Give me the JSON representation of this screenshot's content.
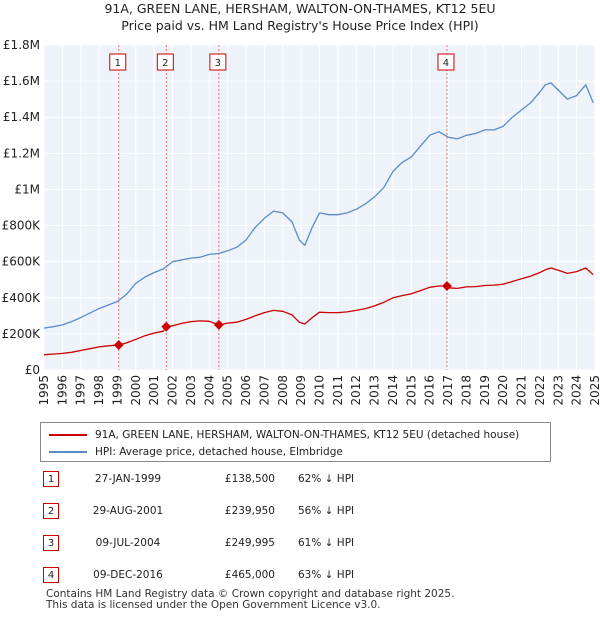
{
  "chart_data": {
    "type": "line",
    "title": "91A, GREEN LANE, HERSHAM, WALTON-ON-THAMES, KT12 5EU",
    "subtitle": "Price paid vs. HM Land Registry's House Price Index (HPI)",
    "xlabel": "",
    "ylabel": "",
    "xlim": [
      1995,
      2025
    ],
    "ylim": [
      0,
      1800000
    ],
    "x_ticks": [
      "1995",
      "1996",
      "1997",
      "1998",
      "1999",
      "2000",
      "2001",
      "2002",
      "2003",
      "2004",
      "2005",
      "2006",
      "2007",
      "2008",
      "2009",
      "2010",
      "2011",
      "2012",
      "2013",
      "2014",
      "2015",
      "2016",
      "2017",
      "2018",
      "2019",
      "2020",
      "2021",
      "2022",
      "2023",
      "2024",
      "2025"
    ],
    "y_ticks": [
      {
        "value": 0,
        "label": "£0"
      },
      {
        "value": 200000,
        "label": "£200K"
      },
      {
        "value": 400000,
        "label": "£400K"
      },
      {
        "value": 600000,
        "label": "£600K"
      },
      {
        "value": 800000,
        "label": "£800K"
      },
      {
        "value": 1000000,
        "label": "£1M"
      },
      {
        "value": 1200000,
        "label": "£1.2M"
      },
      {
        "value": 1400000,
        "label": "£1.4M"
      },
      {
        "value": 1600000,
        "label": "£1.6M"
      },
      {
        "value": 1800000,
        "label": "£1.8M"
      }
    ],
    "grid": true,
    "series": [
      {
        "name": "HPI: Average price, detached house, Elmbridge",
        "color": "#5b8cc8",
        "x": [
          1995,
          1995.5,
          1996,
          1996.5,
          1997,
          1997.5,
          1998,
          1998.5,
          1999,
          1999.5,
          2000,
          2000.5,
          2001,
          2001.5,
          2002,
          2002.5,
          2003,
          2003.5,
          2004,
          2004.5,
          2005,
          2005.5,
          2006,
          2006.5,
          2007,
          2007.5,
          2008,
          2008.5,
          2008.9,
          2009.2,
          2009.6,
          2010,
          2010.5,
          2011,
          2011.5,
          2012,
          2012.5,
          2013,
          2013.5,
          2014,
          2014.5,
          2015,
          2015.5,
          2016,
          2016.5,
          2017,
          2017.5,
          2018,
          2018.5,
          2019,
          2019.5,
          2020,
          2020.5,
          2021,
          2021.5,
          2022,
          2022.3,
          2022.6,
          2023,
          2023.5,
          2024,
          2024.5,
          2024.9
        ],
        "values": [
          232000,
          240000,
          250000,
          268000,
          290000,
          315000,
          340000,
          360000,
          380000,
          420000,
          480000,
          515000,
          540000,
          560000,
          600000,
          610000,
          620000,
          625000,
          640000,
          645000,
          660000,
          680000,
          720000,
          790000,
          840000,
          880000,
          870000,
          820000,
          720000,
          690000,
          790000,
          870000,
          860000,
          860000,
          870000,
          890000,
          920000,
          960000,
          1010000,
          1100000,
          1150000,
          1180000,
          1240000,
          1300000,
          1320000,
          1290000,
          1280000,
          1300000,
          1310000,
          1330000,
          1330000,
          1350000,
          1400000,
          1440000,
          1480000,
          1540000,
          1580000,
          1590000,
          1550000,
          1500000,
          1520000,
          1580000,
          1480000
        ]
      },
      {
        "name": "91A, GREEN LANE, HERSHAM, WALTON-ON-THAMES, KT12 5EU (detached house)",
        "color": "#cc0000",
        "x": [
          1995,
          1995.5,
          1996,
          1996.5,
          1997,
          1997.5,
          1998,
          1998.5,
          1999.07,
          1999.5,
          2000,
          2000.5,
          2001,
          2001.5,
          2001.66,
          2002,
          2002.5,
          2003,
          2003.5,
          2004,
          2004.52,
          2005,
          2005.5,
          2006,
          2006.5,
          2007,
          2007.5,
          2008,
          2008.5,
          2008.9,
          2009.2,
          2009.6,
          2010,
          2010.5,
          2011,
          2011.5,
          2012,
          2012.5,
          2013,
          2013.5,
          2014,
          2014.5,
          2015,
          2015.5,
          2016,
          2016.5,
          2016.94,
          2017,
          2017.5,
          2018,
          2018.5,
          2019,
          2019.5,
          2020,
          2020.5,
          2021,
          2021.5,
          2022,
          2022.3,
          2022.6,
          2023,
          2023.5,
          2024,
          2024.5,
          2024.9
        ],
        "values": [
          85000,
          88000,
          92000,
          98000,
          108000,
          118000,
          128000,
          134000,
          138500,
          150000,
          170000,
          190000,
          205000,
          215000,
          239950,
          245000,
          258000,
          268000,
          272000,
          270000,
          249995,
          260000,
          265000,
          280000,
          300000,
          318000,
          330000,
          325000,
          305000,
          265000,
          255000,
          290000,
          320000,
          318000,
          318000,
          322000,
          330000,
          340000,
          355000,
          375000,
          400000,
          412000,
          422000,
          440000,
          458000,
          465000,
          465000,
          455000,
          452000,
          460000,
          462000,
          468000,
          470000,
          475000,
          490000,
          505000,
          520000,
          540000,
          555000,
          565000,
          552000,
          535000,
          545000,
          565000,
          528000
        ]
      }
    ],
    "sales": [
      {
        "label": "1",
        "x": 1999.07,
        "value": 138500
      },
      {
        "label": "2",
        "x": 2001.66,
        "value": 239950
      },
      {
        "label": "3",
        "x": 2004.52,
        "value": 249995
      },
      {
        "label": "4",
        "x": 2016.94,
        "value": 465000
      }
    ]
  },
  "legend": {
    "property_label": "91A, GREEN LANE, HERSHAM, WALTON-ON-THAMES, KT12 5EU (detached house)",
    "hpi_label": "HPI: Average price, detached house, Elmbridge",
    "property_color": "#cc0000",
    "hpi_color": "#5b8cc8"
  },
  "sales_table": [
    {
      "num": "1",
      "date": "27-JAN-1999",
      "price": "£138,500",
      "hpi": "62% ↓ HPI"
    },
    {
      "num": "2",
      "date": "29-AUG-2001",
      "price": "£239,950",
      "hpi": "56% ↓ HPI"
    },
    {
      "num": "3",
      "date": "09-JUL-2004",
      "price": "£249,995",
      "hpi": "61% ↓ HPI"
    },
    {
      "num": "4",
      "date": "09-DEC-2016",
      "price": "£465,000",
      "hpi": "63% ↓ HPI"
    }
  ],
  "footer": {
    "line1": "Contains HM Land Registry data © Crown copyright and database right 2025.",
    "line2": "This data is licensed under the Open Government Licence v3.0."
  }
}
